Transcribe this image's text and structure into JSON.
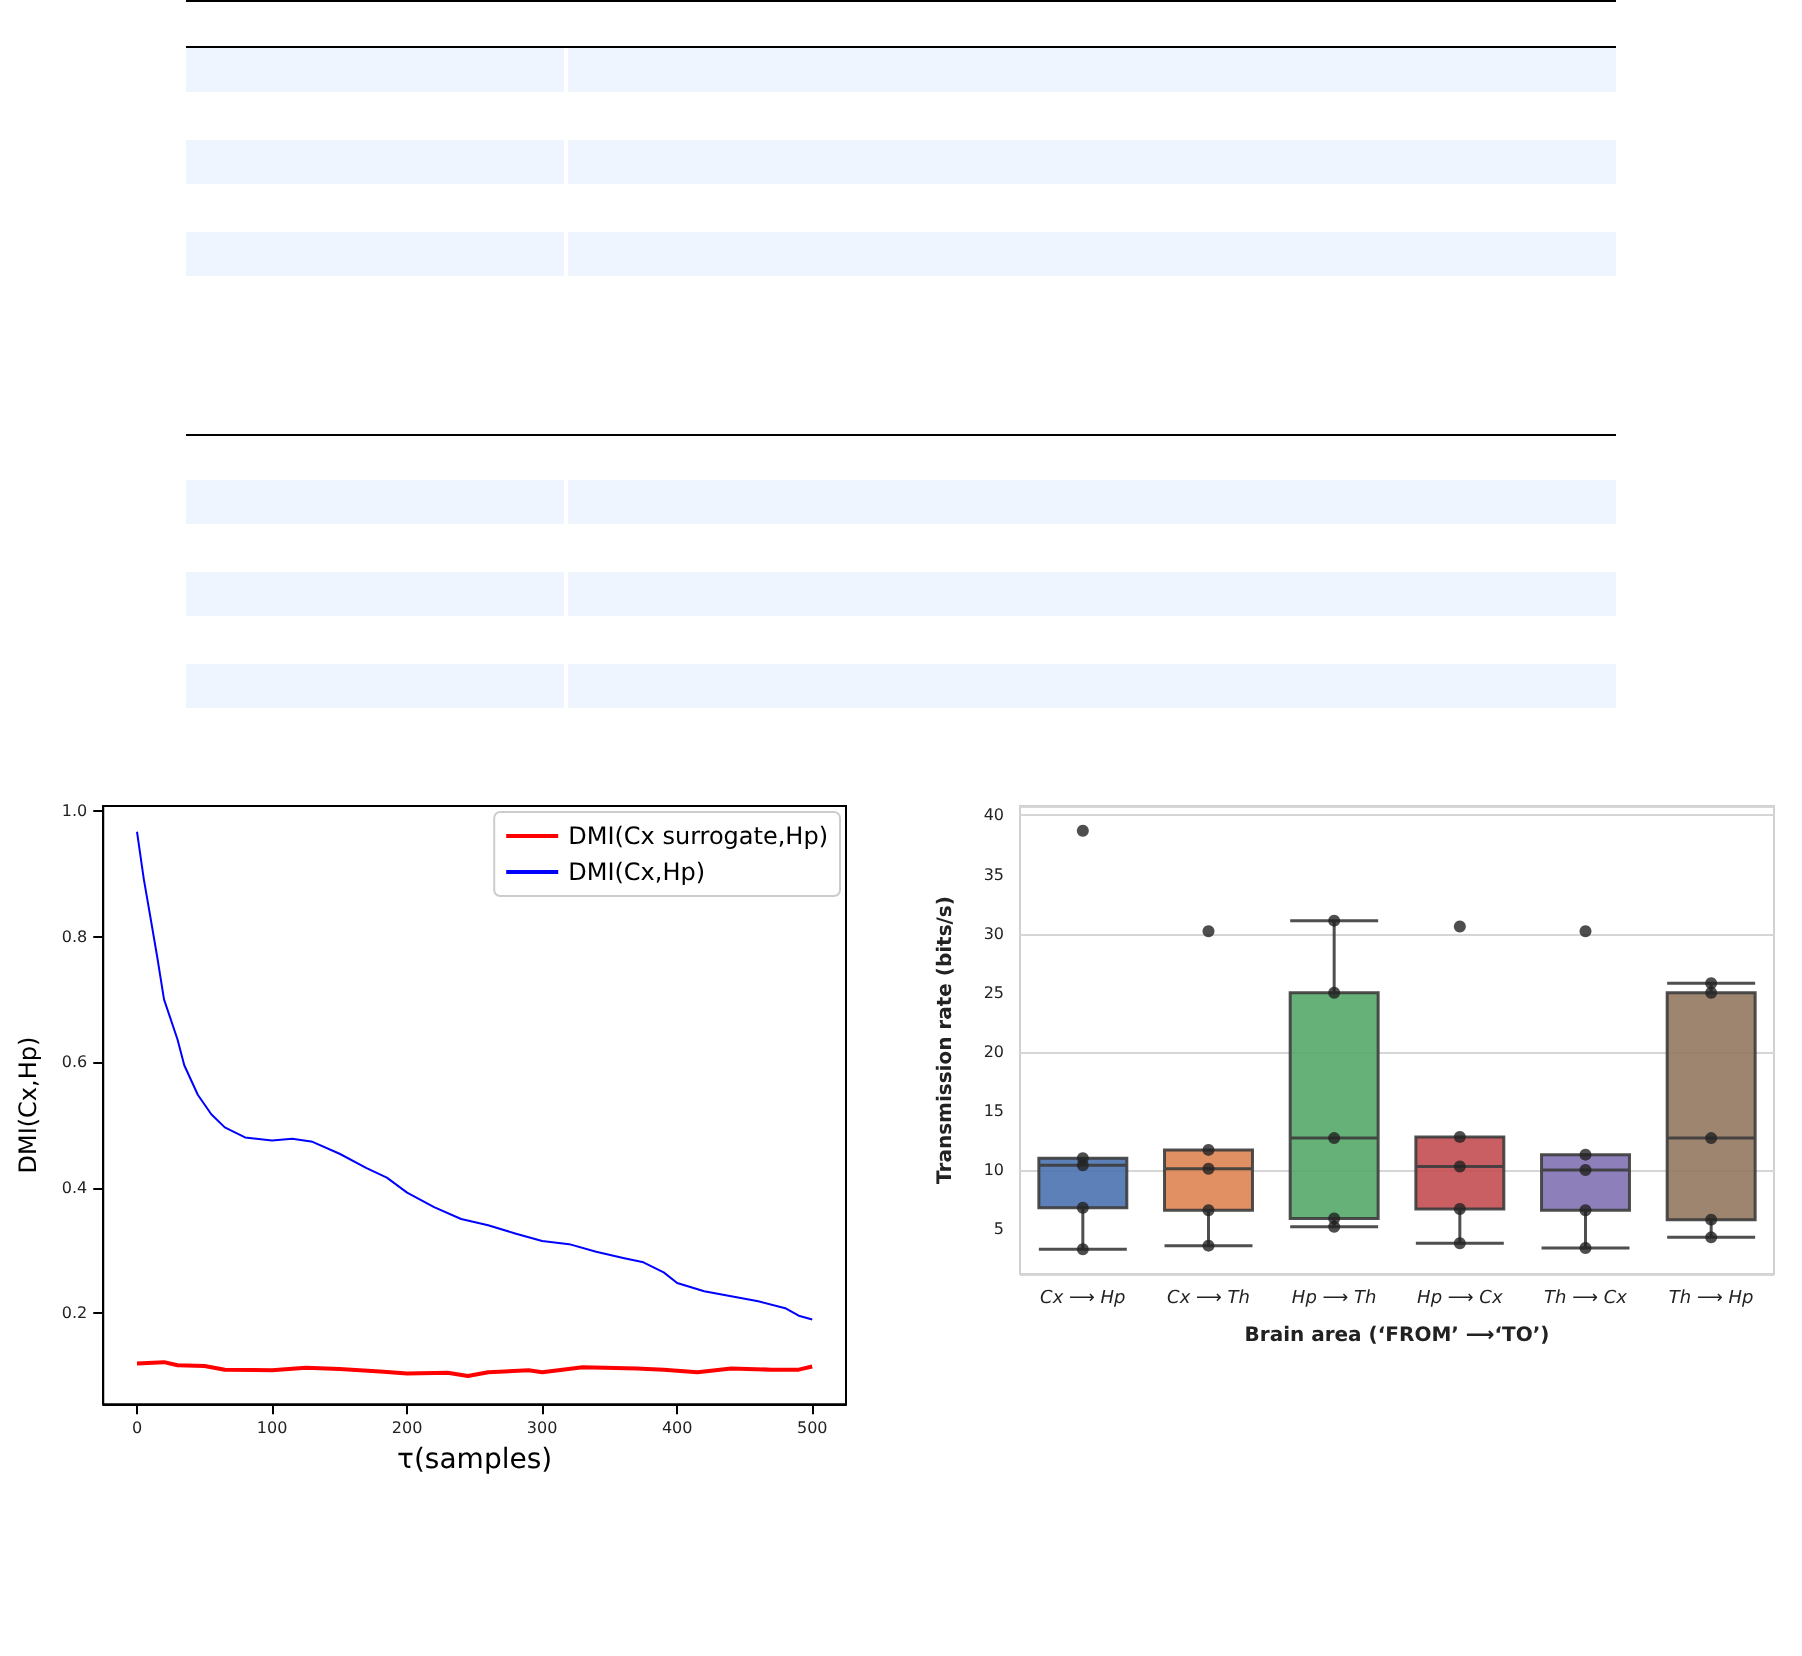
{
  "chart_data": [
    {
      "type": "line",
      "xlabel": "τ(samples)",
      "ylabel": "DMI(Cx,Hp)",
      "xlim": [
        -25,
        525
      ],
      "xticks": [
        0,
        100,
        200,
        300,
        400,
        500
      ],
      "ylim": [
        0.055,
        1.008
      ],
      "yticks": [
        0.2,
        0.4,
        0.6,
        0.8,
        {
          "value": 1,
          "label": "1.0"
        }
      ],
      "legend": "top right",
      "marker": "none",
      "series": [
        {
          "name": "DMI(Cx surrogate,Hp)",
          "color": "#ff0000",
          "x": [
            0,
            20,
            30,
            50,
            65,
            100,
            125,
            150,
            180,
            200,
            230,
            245,
            260,
            290,
            300,
            330,
            370,
            390,
            415,
            440,
            470,
            490,
            500
          ],
          "values": [
            0.12,
            0.122,
            0.117,
            0.116,
            0.11,
            0.109,
            0.113,
            0.111,
            0.107,
            0.104,
            0.105,
            0.1,
            0.106,
            0.109,
            0.106,
            0.114,
            0.112,
            0.11,
            0.106,
            0.112,
            0.11,
            0.11,
            0.115
          ]
        },
        {
          "name": "DMI(Cx,Hp)",
          "color": "#0000ff",
          "x": [
            0,
            5,
            10,
            15,
            20,
            30,
            35,
            45,
            55,
            65,
            80,
            100,
            115,
            130,
            150,
            170,
            185,
            200,
            220,
            240,
            260,
            280,
            300,
            320,
            340,
            360,
            375,
            390,
            400,
            420,
            440,
            460,
            480,
            490,
            500
          ],
          "values": [
            0.967,
            0.892,
            0.83,
            0.767,
            0.7,
            0.636,
            0.595,
            0.548,
            0.517,
            0.496,
            0.48,
            0.475,
            0.478,
            0.473,
            0.454,
            0.431,
            0.416,
            0.392,
            0.369,
            0.35,
            0.34,
            0.327,
            0.315,
            0.31,
            0.298,
            0.288,
            0.281,
            0.265,
            0.248,
            0.235,
            0.227,
            0.219,
            0.208,
            0.196,
            0.19
          ]
        }
      ]
    },
    {
      "type": "box",
      "xlabel": "Brain area (‘FROM’ ⟶‘TO’)",
      "ylabel": "Transmission rate (bits/s)",
      "categories": [
        "Cx ⟶ Hp",
        "Cx ⟶ Th",
        "Hp ⟶ Th",
        "Hp ⟶ Cx",
        "Th ⟶ Cx",
        "Th ⟶ Hp"
      ],
      "ylim": [
        1.2,
        40.8
      ],
      "yticks": [
        5,
        10,
        15,
        20,
        25,
        30,
        35,
        40
      ],
      "grid": "y",
      "colors": [
        "#4c72b0",
        "#dd8452",
        "#55a868",
        "#c44e52",
        "#8172b3",
        "#937860"
      ],
      "boxes": [
        {
          "low": 3.3,
          "q1": 6.8,
          "median": 10.4,
          "q3": 11.0,
          "high": 11.0
        },
        {
          "low": 3.6,
          "q1": 6.6,
          "median": 10.1,
          "q3": 11.7,
          "high": 11.7
        },
        {
          "low": 5.2,
          "q1": 5.9,
          "median": 12.7,
          "q3": 25.0,
          "high": 31.1
        },
        {
          "low": 3.8,
          "q1": 6.7,
          "median": 10.3,
          "q3": 12.8,
          "high": 12.8
        },
        {
          "low": 3.4,
          "q1": 6.6,
          "median": 10.0,
          "q3": 11.3,
          "high": 11.3
        },
        {
          "low": 4.3,
          "q1": 5.8,
          "median": 12.7,
          "q3": 25.0,
          "high": 25.8
        }
      ],
      "series": [
        {
          "type": "scatter",
          "color": "#222222",
          "x": [
            "Cx ⟶ Hp",
            "Cx ⟶ Hp",
            "Cx ⟶ Hp",
            "Cx ⟶ Hp",
            "Cx ⟶ Hp",
            "Cx ⟶ Th",
            "Cx ⟶ Th",
            "Cx ⟶ Th",
            "Cx ⟶ Th",
            "Cx ⟶ Th",
            "Hp ⟶ Th",
            "Hp ⟶ Th",
            "Hp ⟶ Th",
            "Hp ⟶ Th",
            "Hp ⟶ Th",
            "Hp ⟶ Cx",
            "Hp ⟶ Cx",
            "Hp ⟶ Cx",
            "Hp ⟶ Cx",
            "Hp ⟶ Cx",
            "Th ⟶ Cx",
            "Th ⟶ Cx",
            "Th ⟶ Cx",
            "Th ⟶ Cx",
            "Th ⟶ Cx",
            "Th ⟶ Hp",
            "Th ⟶ Hp",
            "Th ⟶ Hp",
            "Th ⟶ Hp",
            "Th ⟶ Hp"
          ],
          "values": [
            3.3,
            6.8,
            10.4,
            11.0,
            38.7,
            3.6,
            6.6,
            10.1,
            11.7,
            30.2,
            5.2,
            5.9,
            12.7,
            25.0,
            31.1,
            3.8,
            6.7,
            10.3,
            12.8,
            30.6,
            3.4,
            6.6,
            10.0,
            11.3,
            30.2,
            4.3,
            5.8,
            12.7,
            25.0,
            25.8
          ]
        }
      ]
    }
  ]
}
